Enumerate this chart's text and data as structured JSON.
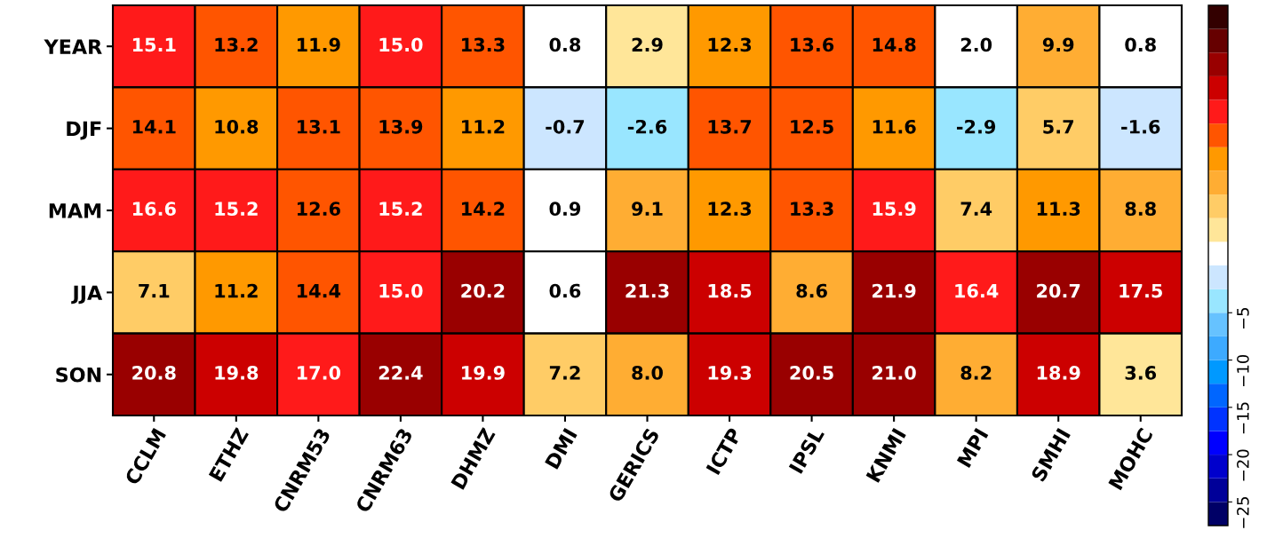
{
  "chart_data": {
    "type": "heatmap",
    "categories": [
      "CCLM",
      "ETHZ",
      "CNRM53",
      "CNRM63",
      "DHMZ",
      "DMI",
      "GERICS",
      "ICTP",
      "IPSL",
      "KNMI",
      "MPI",
      "SMHI",
      "MOHC"
    ],
    "y_categories": [
      "YEAR",
      "DJF",
      "MAM",
      "JJA",
      "SON"
    ],
    "cells": [
      [
        15.1,
        13.2,
        11.9,
        15.0,
        13.3,
        0.8,
        2.9,
        12.3,
        13.6,
        14.8,
        2.0,
        9.9,
        0.8
      ],
      [
        14.1,
        10.8,
        13.1,
        13.9,
        11.2,
        -0.7,
        -2.6,
        13.7,
        12.5,
        11.6,
        -2.9,
        5.7,
        -1.6
      ],
      [
        16.6,
        15.2,
        12.6,
        15.2,
        14.2,
        0.9,
        9.1,
        12.3,
        13.3,
        15.9,
        7.4,
        11.3,
        8.8
      ],
      [
        7.1,
        11.2,
        14.4,
        15.0,
        20.2,
        0.6,
        21.3,
        18.5,
        8.6,
        21.9,
        16.4,
        20.7,
        17.5
      ],
      [
        20.8,
        19.8,
        17.0,
        22.4,
        19.9,
        7.2,
        8.0,
        19.3,
        20.5,
        21.0,
        8.2,
        18.9,
        3.6
      ]
    ],
    "cell_labels": [
      [
        "15.1",
        "13.2",
        "11.9",
        "15.0",
        "13.3",
        "0.8",
        "2.9",
        "12.3",
        "13.6",
        "14.8",
        "2.0",
        "9.9",
        "0.8"
      ],
      [
        "14.1",
        "10.8",
        "13.1",
        "13.9",
        "11.2",
        "-0.7",
        "-2.6",
        "13.7",
        "12.5",
        "11.6",
        "-2.9",
        "5.7",
        "-1.6"
      ],
      [
        "16.6",
        "15.2",
        "12.6",
        "15.2",
        "14.2",
        "0.9",
        "9.1",
        "12.3",
        "13.3",
        "15.9",
        "7.4",
        "11.3",
        "8.8"
      ],
      [
        "7.1",
        "11.2",
        "14.4",
        "15.0",
        "20.2",
        "0.6",
        "21.3",
        "18.5",
        "8.6",
        "21.9",
        "16.4",
        "20.7",
        "17.5"
      ],
      [
        "20.8",
        "19.8",
        "17.0",
        "22.4",
        "19.9",
        "7.2",
        "8.0",
        "19.3",
        "20.5",
        "21.0",
        "8.2",
        "18.9",
        "3.6"
      ]
    ],
    "clim": [
      -27.5,
      27.5
    ],
    "cticks": [
      {
        "value": -25,
        "label": "−25"
      },
      {
        "value": -20,
        "label": "−20"
      },
      {
        "value": -15,
        "label": "−15"
      },
      {
        "value": -10,
        "label": "−10"
      },
      {
        "value": -5,
        "label": "−5"
      }
    ],
    "data_labels": true
  }
}
